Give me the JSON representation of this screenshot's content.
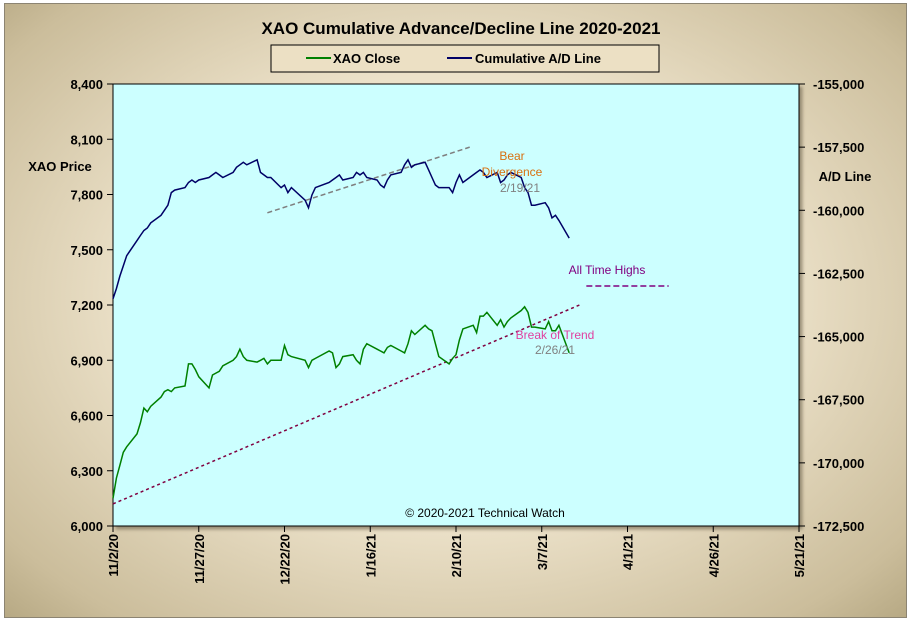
{
  "chart_data": {
    "type": "line",
    "title": "XAO Cumulative Advance/Decline Line 2020-2021",
    "ylabel_left": "XAO Price",
    "ylabel_right": "A/D Line",
    "ylim_left": [
      6000,
      8400
    ],
    "ylim_right": [
      -172500,
      -155000
    ],
    "yticks_left": [
      "6,000",
      "6,300",
      "6,600",
      "6,900",
      "7,200",
      "7,500",
      "7,800",
      "8,100",
      "8,400"
    ],
    "yticks_right": [
      "-172,500",
      "-170,000",
      "-167,500",
      "-165,000",
      "-162,500",
      "-160,000",
      "-157,500",
      "-155,000"
    ],
    "xticks": [
      "11/2/20",
      "11/27/20",
      "12/22/20",
      "1/16/21",
      "2/10/21",
      "3/7/21",
      "4/1/21",
      "4/26/21",
      "5/21/21"
    ],
    "x_range": [
      "2020-11-02",
      "2021-05-21"
    ],
    "grid": false,
    "legend_position": "top",
    "copyright": "© 2020-2021  Technical Watch",
    "series": [
      {
        "name": "XAO Close",
        "axis": "left",
        "color": "#008000",
        "points": [
          [
            "2020-11-02",
            6150
          ],
          [
            "2020-11-03",
            6260
          ],
          [
            "2020-11-04",
            6330
          ],
          [
            "2020-11-05",
            6400
          ],
          [
            "2020-11-06",
            6430
          ],
          [
            "2020-11-09",
            6500
          ],
          [
            "2020-11-10",
            6560
          ],
          [
            "2020-11-11",
            6640
          ],
          [
            "2020-11-12",
            6620
          ],
          [
            "2020-11-13",
            6650
          ],
          [
            "2020-11-16",
            6700
          ],
          [
            "2020-11-17",
            6730
          ],
          [
            "2020-11-18",
            6740
          ],
          [
            "2020-11-19",
            6730
          ],
          [
            "2020-11-20",
            6750
          ],
          [
            "2020-11-23",
            6760
          ],
          [
            "2020-11-24",
            6880
          ],
          [
            "2020-11-25",
            6880
          ],
          [
            "2020-11-26",
            6850
          ],
          [
            "2020-11-27",
            6810
          ],
          [
            "2020-11-30",
            6750
          ],
          [
            "2020-12-01",
            6820
          ],
          [
            "2020-12-02",
            6830
          ],
          [
            "2020-12-03",
            6840
          ],
          [
            "2020-12-04",
            6870
          ],
          [
            "2020-12-07",
            6900
          ],
          [
            "2020-12-08",
            6920
          ],
          [
            "2020-12-09",
            6960
          ],
          [
            "2020-12-10",
            6920
          ],
          [
            "2020-12-11",
            6900
          ],
          [
            "2020-12-14",
            6890
          ],
          [
            "2020-12-15",
            6900
          ],
          [
            "2020-12-16",
            6910
          ],
          [
            "2020-12-17",
            6880
          ],
          [
            "2020-12-18",
            6900
          ],
          [
            "2020-12-21",
            6900
          ],
          [
            "2020-12-22",
            6980
          ],
          [
            "2020-12-23",
            6930
          ],
          [
            "2020-12-24",
            6920
          ],
          [
            "2020-12-28",
            6900
          ],
          [
            "2020-12-29",
            6860
          ],
          [
            "2020-12-30",
            6900
          ],
          [
            "2020-12-31",
            6910
          ],
          [
            "2021-01-04",
            6950
          ],
          [
            "2021-01-05",
            6940
          ],
          [
            "2021-01-06",
            6860
          ],
          [
            "2021-01-07",
            6880
          ],
          [
            "2021-01-08",
            6920
          ],
          [
            "2021-01-11",
            6930
          ],
          [
            "2021-01-12",
            6900
          ],
          [
            "2021-01-13",
            6880
          ],
          [
            "2021-01-14",
            6960
          ],
          [
            "2021-01-15",
            6990
          ],
          [
            "2021-01-18",
            6960
          ],
          [
            "2021-01-19",
            6950
          ],
          [
            "2021-01-20",
            6940
          ],
          [
            "2021-01-21",
            6970
          ],
          [
            "2021-01-22",
            6980
          ],
          [
            "2021-01-25",
            6950
          ],
          [
            "2021-01-26",
            6940
          ],
          [
            "2021-01-27",
            6990
          ],
          [
            "2021-01-28",
            7060
          ],
          [
            "2021-01-29",
            7040
          ],
          [
            "2021-02-01",
            7090
          ],
          [
            "2021-02-02",
            7070
          ],
          [
            "2021-02-03",
            7060
          ],
          [
            "2021-02-04",
            6990
          ],
          [
            "2021-02-05",
            6920
          ],
          [
            "2021-02-08",
            6880
          ],
          [
            "2021-02-09",
            6910
          ],
          [
            "2021-02-10",
            6930
          ],
          [
            "2021-02-11",
            7010
          ],
          [
            "2021-02-12",
            7070
          ],
          [
            "2021-02-15",
            7090
          ],
          [
            "2021-02-16",
            7050
          ],
          [
            "2021-02-17",
            7140
          ],
          [
            "2021-02-18",
            7140
          ],
          [
            "2021-02-19",
            7160
          ],
          [
            "2021-02-22",
            7090
          ],
          [
            "2021-02-23",
            7120
          ],
          [
            "2021-02-24",
            7080
          ],
          [
            "2021-02-25",
            7110
          ],
          [
            "2021-02-26",
            7130
          ],
          [
            "2021-03-01",
            7170
          ],
          [
            "2021-03-02",
            7190
          ],
          [
            "2021-03-03",
            7160
          ],
          [
            "2021-03-04",
            7080
          ],
          [
            "2021-03-05",
            7080
          ],
          [
            "2021-03-08",
            7070
          ],
          [
            "2021-03-09",
            7110
          ],
          [
            "2021-03-10",
            7060
          ],
          [
            "2021-03-11",
            7060
          ],
          [
            "2021-03-12",
            7090
          ],
          [
            "2021-03-15",
            6940
          ]
        ]
      },
      {
        "name": "Cumulative A/D Line",
        "axis": "right",
        "color": "#000066",
        "points": [
          [
            "2020-11-02",
            -163500
          ],
          [
            "2020-11-03",
            -163100
          ],
          [
            "2020-11-04",
            -162600
          ],
          [
            "2020-11-05",
            -162200
          ],
          [
            "2020-11-06",
            -161800
          ],
          [
            "2020-11-09",
            -161200
          ],
          [
            "2020-11-10",
            -161000
          ],
          [
            "2020-11-11",
            -160800
          ],
          [
            "2020-11-12",
            -160700
          ],
          [
            "2020-11-13",
            -160500
          ],
          [
            "2020-11-16",
            -160200
          ],
          [
            "2020-11-17",
            -160000
          ],
          [
            "2020-11-18",
            -159800
          ],
          [
            "2020-11-19",
            -159300
          ],
          [
            "2020-11-20",
            -159200
          ],
          [
            "2020-11-23",
            -159100
          ],
          [
            "2020-11-24",
            -158900
          ],
          [
            "2020-11-25",
            -158800
          ],
          [
            "2020-11-26",
            -158900
          ],
          [
            "2020-11-27",
            -158800
          ],
          [
            "2020-11-30",
            -158700
          ],
          [
            "2020-12-01",
            -158600
          ],
          [
            "2020-12-02",
            -158500
          ],
          [
            "2020-12-03",
            -158600
          ],
          [
            "2020-12-04",
            -158700
          ],
          [
            "2020-12-07",
            -158500
          ],
          [
            "2020-12-08",
            -158300
          ],
          [
            "2020-12-09",
            -158200
          ],
          [
            "2020-12-10",
            -158100
          ],
          [
            "2020-12-11",
            -158200
          ],
          [
            "2020-12-14",
            -158000
          ],
          [
            "2020-12-15",
            -158500
          ],
          [
            "2020-12-16",
            -158600
          ],
          [
            "2020-12-17",
            -158700
          ],
          [
            "2020-12-18",
            -158700
          ],
          [
            "2020-12-21",
            -159100
          ],
          [
            "2020-12-22",
            -159000
          ],
          [
            "2020-12-23",
            -159300
          ],
          [
            "2020-12-24",
            -159100
          ],
          [
            "2020-12-28",
            -159600
          ],
          [
            "2020-12-29",
            -159900
          ],
          [
            "2020-12-30",
            -159400
          ],
          [
            "2020-12-31",
            -159100
          ],
          [
            "2021-01-04",
            -158900
          ],
          [
            "2021-01-05",
            -158800
          ],
          [
            "2021-01-06",
            -158700
          ],
          [
            "2021-01-07",
            -158600
          ],
          [
            "2021-01-08",
            -158800
          ],
          [
            "2021-01-11",
            -158700
          ],
          [
            "2021-01-12",
            -158500
          ],
          [
            "2021-01-13",
            -158600
          ],
          [
            "2021-01-14",
            -158500
          ],
          [
            "2021-01-15",
            -158700
          ],
          [
            "2021-01-18",
            -158800
          ],
          [
            "2021-01-19",
            -159000
          ],
          [
            "2021-01-20",
            -159100
          ],
          [
            "2021-01-21",
            -158800
          ],
          [
            "2021-01-22",
            -158600
          ],
          [
            "2021-01-25",
            -158500
          ],
          [
            "2021-01-26",
            -158200
          ],
          [
            "2021-01-27",
            -158000
          ],
          [
            "2021-01-28",
            -158300
          ],
          [
            "2021-01-29",
            -158200
          ],
          [
            "2021-02-01",
            -158100
          ],
          [
            "2021-02-02",
            -158400
          ],
          [
            "2021-02-03",
            -158700
          ],
          [
            "2021-02-04",
            -159000
          ],
          [
            "2021-02-05",
            -159100
          ],
          [
            "2021-02-08",
            -159100
          ],
          [
            "2021-02-09",
            -159300
          ],
          [
            "2021-02-10",
            -158900
          ],
          [
            "2021-02-11",
            -158600
          ],
          [
            "2021-02-12",
            -158900
          ],
          [
            "2021-02-15",
            -158600
          ],
          [
            "2021-02-16",
            -158500
          ],
          [
            "2021-02-17",
            -158400
          ],
          [
            "2021-02-18",
            -158500
          ],
          [
            "2021-02-19",
            -158700
          ],
          [
            "2021-02-22",
            -158500
          ],
          [
            "2021-02-23",
            -158900
          ],
          [
            "2021-02-24",
            -158800
          ],
          [
            "2021-02-25",
            -158600
          ],
          [
            "2021-02-26",
            -158500
          ],
          [
            "2021-03-01",
            -158700
          ],
          [
            "2021-03-02",
            -159100
          ],
          [
            "2021-03-03",
            -159300
          ],
          [
            "2021-03-04",
            -159800
          ],
          [
            "2021-03-05",
            -159800
          ],
          [
            "2021-03-08",
            -159700
          ],
          [
            "2021-03-09",
            -159900
          ],
          [
            "2021-03-10",
            -160300
          ],
          [
            "2021-03-11",
            -160200
          ],
          [
            "2021-03-12",
            -160400
          ],
          [
            "2021-03-15",
            -161100
          ]
        ]
      }
    ],
    "trendlines": [
      {
        "name": "xao-trendline",
        "axis": "left",
        "color": "#800040",
        "dash": "dotted",
        "from": [
          "2020-11-02",
          6120
        ],
        "to": [
          "2021-03-18",
          7200
        ]
      },
      {
        "name": "ad-bear-trendline",
        "axis": "right",
        "color": "#7f7f7f",
        "dash": "dashed",
        "from": [
          "2020-12-17",
          -160100
        ],
        "to": [
          "2021-02-14",
          -157500
        ]
      }
    ],
    "reference_lines": [
      {
        "name": "all-time-high-line",
        "axis": "right",
        "color": "#800080",
        "from": [
          "2021-03-20",
          -163000
        ],
        "to": [
          "2021-04-13",
          -163000
        ]
      }
    ],
    "annotations": [
      {
        "name": "bear-label",
        "text": "Bear",
        "color": "#d87010"
      },
      {
        "name": "divergence-label",
        "text": "Divergence",
        "color": "#d87010"
      },
      {
        "name": "bear-date-label",
        "text": "2/19/21",
        "color": "#808080"
      },
      {
        "name": "all-time-highs-label",
        "text": "All Time Highs",
        "color": "#800080"
      },
      {
        "name": "break-of-trend-label",
        "text": "Break of Trend",
        "color": "#e040a0"
      },
      {
        "name": "break-date-label",
        "text": "2/26/21",
        "color": "#808080"
      }
    ]
  }
}
